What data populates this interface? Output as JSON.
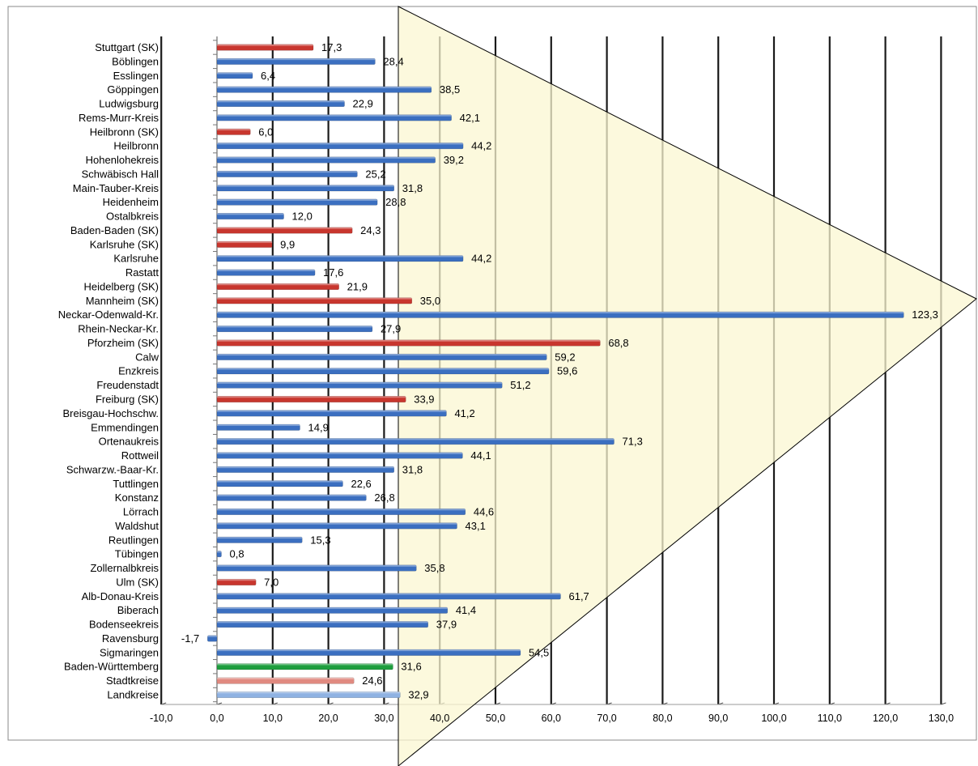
{
  "chart_data": {
    "type": "bar",
    "orientation": "horizontal",
    "title": "",
    "xlabel": "",
    "ylabel": "",
    "xlim": [
      -10,
      130
    ],
    "x_ticks": [
      -10,
      0,
      10,
      20,
      30,
      40,
      50,
      60,
      70,
      80,
      90,
      100,
      110,
      120,
      130
    ],
    "x_tick_labels": [
      "-10,0",
      "0,0",
      "10,0",
      "20,0",
      "30,0",
      "40,0",
      "50,0",
      "60,0",
      "70,0",
      "80,0",
      "90,0",
      "100,0",
      "110,0",
      "120,0",
      "130,0"
    ],
    "grid": "vertical",
    "legend": "none",
    "categories": [
      "Stuttgart (SK)",
      "Böblingen",
      "Esslingen",
      "Göppingen",
      "Ludwigsburg",
      "Rems-Murr-Kreis",
      "Heilbronn (SK)",
      "Heilbronn",
      "Hohenlohekreis",
      "Schwäbisch Hall",
      "Main-Tauber-Kreis",
      "Heidenheim",
      "Ostalbkreis",
      "Baden-Baden (SK)",
      "Karlsruhe (SK)",
      "Karlsruhe",
      "Rastatt",
      "Heidelberg (SK)",
      "Mannheim (SK)",
      "Neckar-Odenwald-Kr.",
      "Rhein-Neckar-Kr.",
      "Pforzheim (SK)",
      "Calw",
      "Enzkreis",
      "Freudenstadt",
      "Freiburg (SK)",
      "Breisgau-Hochschw.",
      "Emmendingen",
      "Ortenaukreis",
      "Rottweil",
      "Schwarzw.-Baar-Kr.",
      "Tuttlingen",
      "Konstanz",
      "Lörrach",
      "Waldshut",
      "Reutlingen",
      "Tübingen",
      "Zollernalbkreis",
      "Ulm (SK)",
      "Alb-Donau-Kreis",
      "Biberach",
      "Bodenseekreis",
      "Ravensburg",
      "Sigmaringen",
      "Baden-Württemberg",
      "Stadtkreise",
      "Landkreise"
    ],
    "values": [
      17.3,
      28.4,
      6.4,
      38.5,
      22.9,
      42.1,
      6.0,
      44.2,
      39.2,
      25.2,
      31.8,
      28.8,
      12.0,
      24.3,
      9.9,
      44.2,
      17.6,
      21.9,
      35.0,
      123.3,
      27.9,
      68.8,
      59.2,
      59.6,
      51.2,
      33.9,
      41.2,
      14.9,
      71.3,
      44.1,
      31.8,
      22.6,
      26.8,
      44.6,
      43.1,
      15.3,
      0.8,
      35.8,
      7.0,
      61.7,
      41.4,
      37.9,
      -1.7,
      54.5,
      31.6,
      24.6,
      32.9
    ],
    "value_labels": [
      "17,3",
      "28,4",
      "6,4",
      "38,5",
      "22,9",
      "42,1",
      "6,0",
      "44,2",
      "39,2",
      "25,2",
      "31,8",
      "28,8",
      "12,0",
      "24,3",
      "9,9",
      "44,2",
      "17,6",
      "21,9",
      "35,0",
      "123,3",
      "27,9",
      "68,8",
      "59,2",
      "59,6",
      "51,2",
      "33,9",
      "41,2",
      "14,9",
      "71,3",
      "44,1",
      "31,8",
      "22,6",
      "26,8",
      "44,6",
      "43,1",
      "15,3",
      "0,8",
      "35,8",
      "7,0",
      "61,7",
      "41,4",
      "37,9",
      "-1,7",
      "54,5",
      "31,6",
      "24,6",
      "32,9"
    ],
    "bar_kinds": [
      "city",
      "district",
      "district",
      "district",
      "district",
      "district",
      "city",
      "district",
      "district",
      "district",
      "district",
      "district",
      "district",
      "city",
      "city",
      "district",
      "district",
      "city",
      "city",
      "district",
      "district",
      "city",
      "district",
      "district",
      "district",
      "city",
      "district",
      "district",
      "district",
      "district",
      "district",
      "district",
      "district",
      "district",
      "district",
      "district",
      "district",
      "district",
      "city",
      "district",
      "district",
      "district",
      "district",
      "district",
      "state",
      "city-total",
      "district-total"
    ],
    "colors": {
      "district": "#3b6fc0",
      "city": "#c8362e",
      "state": "#1e9e3e",
      "city-total": "#e08a80",
      "district-total": "#8fb2e2",
      "overlay_triangle": "#fbf7d2"
    }
  }
}
